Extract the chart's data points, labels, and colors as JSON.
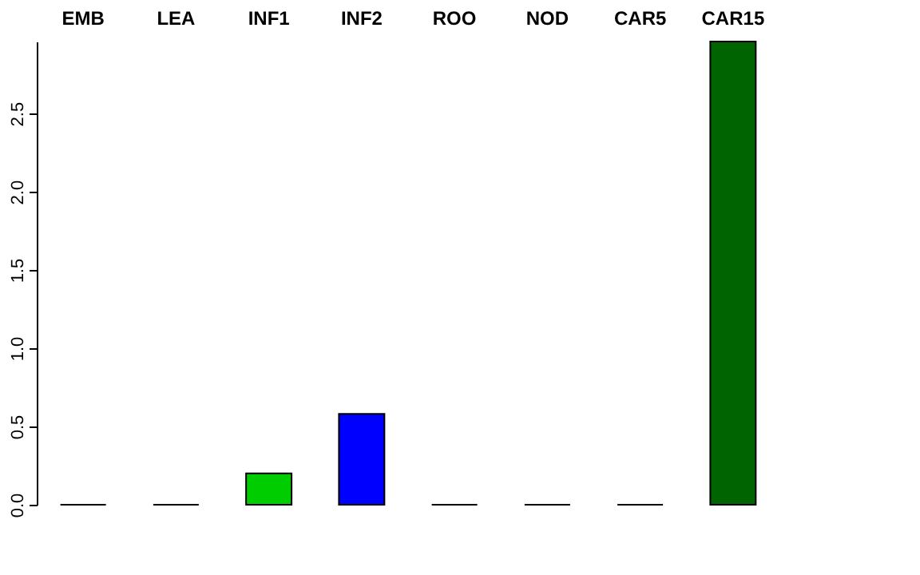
{
  "chart_data": {
    "type": "bar",
    "categories": [
      "EMB",
      "LEA",
      "INF1",
      "INF2",
      "ROO",
      "NOD",
      "CAR5",
      "CAR15"
    ],
    "values": [
      0,
      0,
      0.2,
      0.58,
      0,
      0,
      0,
      2.96
    ],
    "colors": [
      "#000000",
      "#000000",
      "#00cd00",
      "#0000ff",
      "#000000",
      "#000000",
      "#000000",
      "#006400"
    ],
    "ylim": [
      0,
      2.96
    ],
    "yticks": [
      {
        "value": 0,
        "label": "0.0"
      },
      0.5,
      {
        "value": 1,
        "label": "1.0"
      },
      1.5,
      {
        "value": 2,
        "label": "2.0"
      },
      2.5
    ],
    "grid": false
  }
}
